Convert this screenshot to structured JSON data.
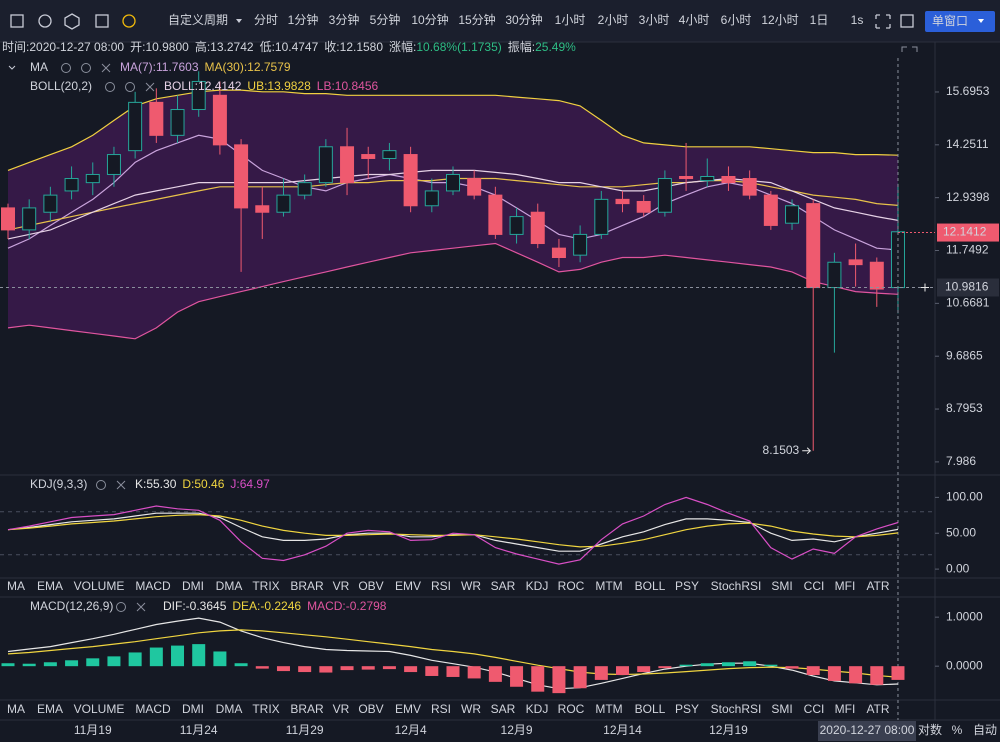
{
  "toolbar": {
    "period_menu": "自定义周期",
    "periods": [
      "分时",
      "1分钟",
      "3分钟",
      "5分钟",
      "10分钟",
      "15分钟",
      "30分钟",
      "1小时",
      "2小时",
      "3小时",
      "4小时",
      "6小时",
      "12小时",
      "1日"
    ],
    "active_period": 13,
    "extra": "1s",
    "window_button": "单窗口"
  },
  "info": {
    "highlight_color": "#2ebd85",
    "items": [
      {
        "label": "时间:",
        "value": "2020-12-27 08:00"
      },
      {
        "label": "开:",
        "value": "10.9800"
      },
      {
        "label": "高:",
        "value": "13.2742"
      },
      {
        "label": "低:",
        "value": "10.4747"
      },
      {
        "label": "收:",
        "value": "12.1580"
      },
      {
        "label": "涨幅:",
        "value": "10.68%(1.1735)",
        "highlight": true
      },
      {
        "label": "振幅:",
        "value": "25.49%",
        "highlight": true
      }
    ]
  },
  "tabs": {
    "items": [
      "MA",
      "EMA",
      "VOLUME",
      "MACD",
      "DMI",
      "DMA",
      "TRIX",
      "BRAR",
      "VR",
      "OBV",
      "EMV",
      "RSI",
      "WR",
      "SAR",
      "KDJ",
      "ROC",
      "MTM",
      "BOLL",
      "PSY",
      "StochRSI",
      "SMI",
      "CCI",
      "MFI",
      "ATR"
    ],
    "rows": [
      {
        "active": 14,
        "muted": 3
      },
      {
        "active": 3,
        "muted": 14
      }
    ]
  },
  "axis_options": [
    "对数",
    "%",
    "自动"
  ],
  "chart_data": [
    {
      "type": "candlestick",
      "log": true,
      "grid": false,
      "ylim": [
        7.84,
        16.7
      ],
      "yticks": [
        15.6953,
        14.2511,
        12.9398,
        11.7492,
        10.6681,
        9.6865,
        8.7953,
        7.986
      ],
      "categories": [
        null,
        null,
        null,
        null,
        "11月19",
        null,
        null,
        null,
        null,
        "11月24",
        null,
        null,
        null,
        null,
        "11月29",
        null,
        null,
        null,
        null,
        "12月4",
        null,
        null,
        null,
        null,
        "12月9",
        null,
        null,
        null,
        null,
        "12月14",
        null,
        null,
        null,
        null,
        "12月19",
        null,
        null,
        null,
        null,
        null,
        null,
        null,
        null
      ],
      "up_color": "#26a69a",
      "down_color": "#ef5a6f",
      "open": [
        12.7,
        12.2,
        12.6,
        13.1,
        13.3,
        13.5,
        14.1,
        15.4,
        14.5,
        15.2,
        15.6,
        14.25,
        12.75,
        12.6,
        13.0,
        13.3,
        14.2,
        14.0,
        13.9,
        14.0,
        12.75,
        13.1,
        13.4,
        13.0,
        12.1,
        12.6,
        11.8,
        11.65,
        12.1,
        12.9,
        12.85,
        12.6,
        13.45,
        13.35,
        13.45,
        13.4,
        13.0,
        12.35,
        12.8,
        10.98,
        11.55,
        11.5,
        10.98
      ],
      "high": [
        12.8,
        12.9,
        13.2,
        13.7,
        13.8,
        14.2,
        15.7,
        15.8,
        15.6,
        16.3,
        16.0,
        14.4,
        13.2,
        13.4,
        13.5,
        14.4,
        14.7,
        14.2,
        14.3,
        14.2,
        13.4,
        13.7,
        13.6,
        13.2,
        12.7,
        12.8,
        12.0,
        12.3,
        13.1,
        13.1,
        13.0,
        13.6,
        14.3,
        13.9,
        13.7,
        13.6,
        13.1,
        12.9,
        12.9,
        11.7,
        11.9,
        11.6,
        13.2742
      ],
      "low": [
        12.0,
        12.0,
        12.4,
        12.9,
        13.0,
        13.2,
        13.9,
        14.3,
        14.3,
        15.0,
        14.0,
        11.3,
        12.0,
        12.5,
        12.9,
        13.2,
        13.0,
        13.4,
        13.6,
        12.6,
        12.6,
        13.0,
        12.9,
        12.0,
        11.9,
        11.8,
        11.4,
        11.5,
        12.0,
        12.6,
        12.5,
        12.5,
        13.1,
        13.2,
        13.1,
        12.9,
        12.2,
        12.2,
        8.1503,
        9.75,
        11.0,
        10.6,
        10.4747
      ],
      "close": [
        12.2,
        12.7,
        13.0,
        13.4,
        13.5,
        14.0,
        15.4,
        14.5,
        15.2,
        16.0,
        14.25,
        12.7,
        12.6,
        13.0,
        13.3,
        14.2,
        13.3,
        13.9,
        14.1,
        12.75,
        13.1,
        13.5,
        13.0,
        12.1,
        12.5,
        11.9,
        11.6,
        12.1,
        12.9,
        12.8,
        12.6,
        13.4,
        13.4,
        13.45,
        13.3,
        13.0,
        12.3,
        12.75,
        10.98,
        11.5,
        11.45,
        10.95,
        12.158
      ],
      "band_fill": "#3b1a4d",
      "legend_groups": [
        "MA",
        "BOLL(20,2)"
      ],
      "overlays": [
        {
          "group": 0,
          "name": "MA(7):11.7603",
          "color": "#c9a3dc",
          "values": [
            11.8,
            12.0,
            12.3,
            12.6,
            12.9,
            13.3,
            13.8,
            14.1,
            14.3,
            14.5,
            14.4,
            14.0,
            13.6,
            13.4,
            13.2,
            13.1,
            13.3,
            13.4,
            13.5,
            13.4,
            13.3,
            13.3,
            13.2,
            13.0,
            12.7,
            12.4,
            12.1,
            12.0,
            12.1,
            12.3,
            12.5,
            12.8,
            13.0,
            13.2,
            13.3,
            13.2,
            13.0,
            12.8,
            12.5,
            12.2,
            12.0,
            11.8,
            11.7603
          ]
        },
        {
          "group": 0,
          "name": "MA(30):12.7579",
          "color": "#e8c24a",
          "values": [
            12.2,
            12.3,
            12.4,
            12.5,
            12.6,
            12.7,
            12.8,
            12.9,
            13.0,
            13.1,
            13.2,
            13.2,
            13.2,
            13.2,
            13.2,
            13.25,
            13.3,
            13.3,
            13.35,
            13.35,
            13.35,
            13.4,
            13.4,
            13.4,
            13.35,
            13.3,
            13.25,
            13.2,
            13.2,
            13.2,
            13.25,
            13.3,
            13.3,
            13.35,
            13.35,
            13.3,
            13.2,
            13.1,
            13.0,
            12.95,
            12.9,
            12.8,
            12.7579
          ]
        },
        {
          "group": 1,
          "name": "BOLL:12.4142",
          "color": "#e6d2e6",
          "values": [
            12.0,
            12.1,
            12.2,
            12.4,
            12.6,
            12.8,
            13.0,
            13.1,
            13.2,
            13.3,
            13.3,
            13.3,
            13.3,
            13.3,
            13.35,
            13.4,
            13.45,
            13.5,
            13.5,
            13.55,
            13.6,
            13.6,
            13.6,
            13.55,
            13.5,
            13.4,
            13.3,
            13.3,
            13.2,
            13.1,
            13.1,
            13.2,
            13.3,
            13.35,
            13.4,
            13.35,
            13.3,
            13.1,
            12.9,
            12.7,
            12.6,
            12.5,
            12.4142
          ]
        },
        {
          "group": 1,
          "name": "UB:13.9828",
          "color": "#f0d040",
          "values": [
            13.6,
            13.8,
            14.0,
            14.2,
            14.5,
            14.9,
            15.3,
            15.5,
            15.6,
            15.7,
            15.75,
            15.75,
            15.7,
            15.7,
            15.65,
            15.65,
            15.6,
            15.6,
            15.6,
            15.6,
            15.6,
            15.6,
            15.6,
            15.6,
            15.55,
            15.5,
            15.45,
            15.3,
            14.9,
            14.5,
            14.3,
            14.25,
            14.2,
            14.2,
            14.2,
            14.2,
            14.15,
            14.1,
            14.05,
            14.05,
            14.0,
            14.0,
            13.9828
          ]
        },
        {
          "group": 1,
          "name": "LB:10.8456",
          "color": "#e0559f",
          "values": [
            10.2,
            10.25,
            10.2,
            10.15,
            10.1,
            10.05,
            10.0,
            10.2,
            10.5,
            10.7,
            10.8,
            10.9,
            11.0,
            11.1,
            11.2,
            11.3,
            11.4,
            11.5,
            11.6,
            11.7,
            11.75,
            11.8,
            11.85,
            11.9,
            11.7,
            11.5,
            11.3,
            11.35,
            11.5,
            11.6,
            11.6,
            11.65,
            11.6,
            11.55,
            11.5,
            11.45,
            11.4,
            11.3,
            11.1,
            11.0,
            10.9,
            10.87,
            10.8456
          ]
        }
      ],
      "min_label": 8.1503,
      "price_tag": 12.1412,
      "crosshair": {
        "value": 10.9816,
        "date": "2020-12-27 08:00"
      }
    },
    {
      "type": "line",
      "title": "KDJ(9,3,3)",
      "ylim": [
        -11,
        127
      ],
      "yticks": [
        {
          "value": 100,
          "label": "100.00"
        },
        {
          "value": 50,
          "label": "50.00"
        },
        {
          "value": 0,
          "label": "0.00"
        }
      ],
      "reference_lines": [
        80,
        20
      ],
      "series": [
        {
          "name": "K:55.30",
          "color": "#e6e6e6",
          "values": [
            55,
            58,
            62,
            66,
            68,
            70,
            74,
            78,
            78,
            78,
            72,
            58,
            45,
            40,
            40,
            42,
            48,
            50,
            50,
            45,
            45,
            48,
            48,
            40,
            35,
            30,
            25,
            25,
            35,
            45,
            52,
            62,
            70,
            70,
            68,
            65,
            50,
            40,
            42,
            38,
            45,
            50,
            55.3
          ]
        },
        {
          "name": "D:50.46",
          "color": "#f0d540",
          "values": [
            55,
            57,
            60,
            63,
            65,
            67,
            70,
            73,
            75,
            76,
            74,
            68,
            60,
            54,
            50,
            47,
            47,
            48,
            49,
            48,
            47,
            47,
            48,
            45,
            42,
            38,
            34,
            31,
            32,
            36,
            41,
            48,
            55,
            60,
            63,
            64,
            60,
            53,
            49,
            46,
            45,
            47,
            50.46
          ]
        },
        {
          "name": "J:64.97",
          "color": "#d94fc6",
          "values": [
            55,
            60,
            66,
            72,
            74,
            76,
            82,
            88,
            84,
            82,
            68,
            38,
            15,
            12,
            20,
            32,
            50,
            54,
            52,
            40,
            41,
            50,
            48,
            30,
            21,
            14,
            7,
            13,
            41,
            63,
            74,
            90,
            100,
            90,
            78,
            67,
            30,
            14,
            28,
            22,
            45,
            56,
            64.97
          ]
        }
      ]
    },
    {
      "type": "macd",
      "title": "MACD(12,26,9)",
      "ylim": [
        -0.69,
        1.35
      ],
      "yticks": [
        {
          "value": 1,
          "label": "1.0000"
        },
        {
          "value": 0,
          "label": "0.0000"
        }
      ],
      "series": [
        {
          "name": "DIF:-0.3645",
          "color": "#e6e6e6",
          "values": [
            0.3,
            0.35,
            0.4,
            0.48,
            0.56,
            0.65,
            0.75,
            0.85,
            0.92,
            0.98,
            0.9,
            0.72,
            0.58,
            0.48,
            0.4,
            0.34,
            0.32,
            0.31,
            0.3,
            0.22,
            0.12,
            0.05,
            -0.02,
            -0.12,
            -0.25,
            -0.38,
            -0.46,
            -0.44,
            -0.35,
            -0.25,
            -0.15,
            -0.06,
            0.0,
            0.04,
            0.06,
            0.06,
            0.0,
            -0.08,
            -0.2,
            -0.3,
            -0.34,
            -0.38,
            -0.3645
          ]
        },
        {
          "name": "DEA:-0.2246",
          "color": "#f0d540",
          "values": [
            0.25,
            0.28,
            0.32,
            0.36,
            0.4,
            0.45,
            0.5,
            0.56,
            0.62,
            0.68,
            0.72,
            0.74,
            0.72,
            0.68,
            0.64,
            0.6,
            0.55,
            0.5,
            0.45,
            0.4,
            0.34,
            0.3,
            0.25,
            0.18,
            0.1,
            0.02,
            -0.05,
            -0.12,
            -0.16,
            -0.17,
            -0.16,
            -0.14,
            -0.11,
            -0.08,
            -0.05,
            -0.03,
            -0.02,
            -0.03,
            -0.06,
            -0.1,
            -0.14,
            -0.19,
            -0.2246
          ]
        },
        {
          "name": "MACD:-0.2798",
          "color": "#e0559f",
          "kind": "bar",
          "up_color": "#1fc7a0",
          "down_color": "#ef5a6f",
          "values": [
            0.06,
            0.05,
            0.08,
            0.12,
            0.16,
            0.2,
            0.28,
            0.38,
            0.42,
            0.45,
            0.3,
            0.06,
            -0.05,
            -0.1,
            -0.12,
            -0.13,
            -0.08,
            -0.07,
            -0.06,
            -0.12,
            -0.2,
            -0.22,
            -0.25,
            -0.32,
            -0.42,
            -0.52,
            -0.55,
            -0.45,
            -0.28,
            -0.18,
            -0.12,
            -0.04,
            0.03,
            0.06,
            0.08,
            0.1,
            0.03,
            -0.05,
            -0.18,
            -0.3,
            -0.35,
            -0.38,
            -0.2798
          ]
        }
      ]
    }
  ]
}
